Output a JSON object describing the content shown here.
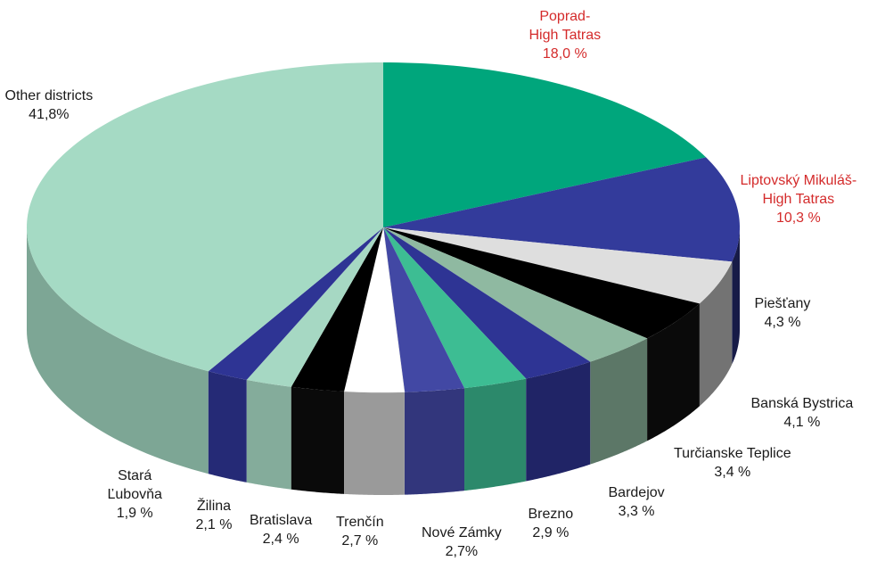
{
  "chart_data": {
    "type": "pie",
    "style": "3d-exploded-pie",
    "start_direction": "top",
    "direction": "clockwise",
    "slices": [
      {
        "label": [
          "Poprad-",
          "High Tatras"
        ],
        "value_text": "18,0 %",
        "value": 18.0,
        "color": "#00a67c",
        "highlight": true
      },
      {
        "label": [
          "Liptovský Mikuláš-",
          "High Tatras"
        ],
        "value_text": "10,3 %",
        "value": 10.3,
        "color": "#333b9b",
        "highlight": true
      },
      {
        "label": [
          "Piešťany"
        ],
        "value_text": "4,3 %",
        "value": 4.3,
        "color": "#dedede",
        "highlight": false
      },
      {
        "label": [
          "Banská Bystrica"
        ],
        "value_text": "4,1 %",
        "value": 4.1,
        "color": "#000000",
        "highlight": false
      },
      {
        "label": [
          "Turčianske Teplice"
        ],
        "value_text": "3,4 %",
        "value": 3.4,
        "color": "#8fb9a1",
        "highlight": false
      },
      {
        "label": [
          "Bardejov"
        ],
        "value_text": "3,3 %",
        "value": 3.3,
        "color": "#2e3494",
        "highlight": false
      },
      {
        "label": [
          "Brezno"
        ],
        "value_text": "2,9 %",
        "value": 2.9,
        "color": "#3dbd93",
        "highlight": false
      },
      {
        "label": [
          "Nové Zámky"
        ],
        "value_text": "2,7%",
        "value": 2.7,
        "color": "#4248a4",
        "highlight": false
      },
      {
        "label": [
          "Trenčín"
        ],
        "value_text": "2,7 %",
        "value": 2.7,
        "color": "#ffffff",
        "highlight": false
      },
      {
        "label": [
          "Bratislava"
        ],
        "value_text": "2,4 %",
        "value": 2.4,
        "color": "#000000",
        "highlight": false
      },
      {
        "label": [
          "Žilina"
        ],
        "value_text": "2,1 %",
        "value": 2.1,
        "color": "#a6d8c3",
        "highlight": false
      },
      {
        "label": [
          "Stará",
          "Ľubovňa"
        ],
        "value_text": "1,9 %",
        "value": 1.9,
        "color": "#2e3494",
        "highlight": false
      },
      {
        "label": [
          "Other districts"
        ],
        "value_text": "41,8%",
        "value": 41.8,
        "color": "#a5dac4",
        "highlight": false
      }
    ],
    "colors": {
      "label_text": "#1a1a1a",
      "highlight_text": "#d42b2b"
    }
  }
}
